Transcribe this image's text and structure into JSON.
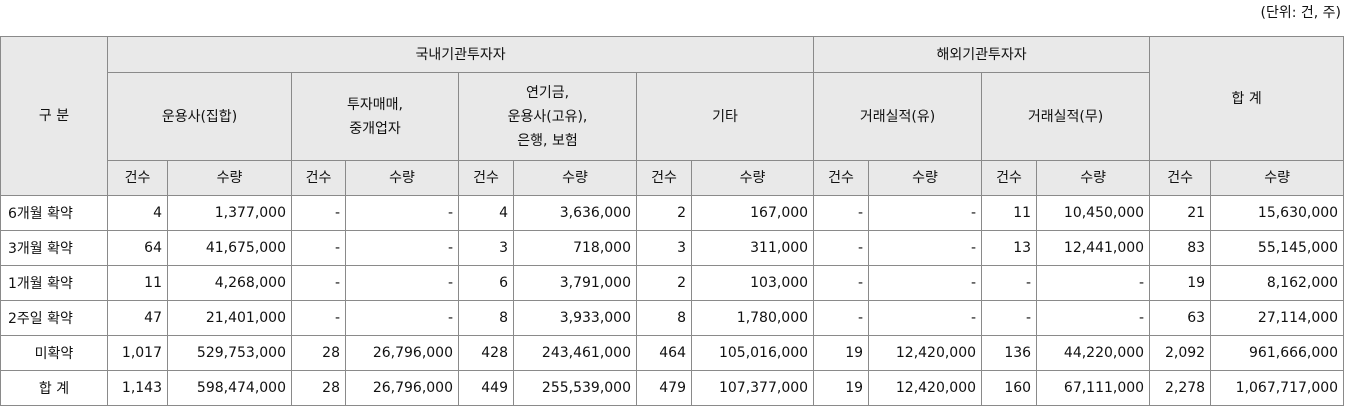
{
  "unit_label": "(단위: 건, 주)",
  "header": {
    "category": "구 분",
    "domestic": "국내기관투자자",
    "foreign": "해외기관투자자",
    "total": "합 계",
    "sub": {
      "fund": "운용사(집합)",
      "dealer": "투자매매,\n중개업자",
      "pension": "연기금,\n운용사(고유),\n은행, 보험",
      "other": "기타",
      "foreign_yes": "거래실적(유)",
      "foreign_no": "거래실적(무)"
    },
    "count_label": "건수",
    "qty_label": "수량"
  },
  "rows": [
    {
      "label": "6개월 확약",
      "fund_c": "4",
      "fund_q": "1,377,000",
      "dealer_c": "-",
      "dealer_q": "-",
      "pension_c": "4",
      "pension_q": "3,636,000",
      "other_c": "2",
      "other_q": "167,000",
      "fy_c": "-",
      "fy_q": "-",
      "fn_c": "11",
      "fn_q": "10,450,000",
      "tot_c": "21",
      "tot_q": "15,630,000"
    },
    {
      "label": "3개월 확약",
      "fund_c": "64",
      "fund_q": "41,675,000",
      "dealer_c": "-",
      "dealer_q": "-",
      "pension_c": "3",
      "pension_q": "718,000",
      "other_c": "3",
      "other_q": "311,000",
      "fy_c": "-",
      "fy_q": "-",
      "fn_c": "13",
      "fn_q": "12,441,000",
      "tot_c": "83",
      "tot_q": "55,145,000"
    },
    {
      "label": "1개월 확약",
      "fund_c": "11",
      "fund_q": "4,268,000",
      "dealer_c": "-",
      "dealer_q": "-",
      "pension_c": "6",
      "pension_q": "3,791,000",
      "other_c": "2",
      "other_q": "103,000",
      "fy_c": "-",
      "fy_q": "-",
      "fn_c": "-",
      "fn_q": "-",
      "tot_c": "19",
      "tot_q": "8,162,000"
    },
    {
      "label": "2주일 확약",
      "fund_c": "47",
      "fund_q": "21,401,000",
      "dealer_c": "-",
      "dealer_q": "-",
      "pension_c": "8",
      "pension_q": "3,933,000",
      "other_c": "8",
      "other_q": "1,780,000",
      "fy_c": "-",
      "fy_q": "-",
      "fn_c": "-",
      "fn_q": "-",
      "tot_c": "63",
      "tot_q": "27,114,000"
    },
    {
      "label": "미확약",
      "fund_c": "1,017",
      "fund_q": "529,753,000",
      "dealer_c": "28",
      "dealer_q": "26,796,000",
      "pension_c": "428",
      "pension_q": "243,461,000",
      "other_c": "464",
      "other_q": "105,016,000",
      "fy_c": "19",
      "fy_q": "12,420,000",
      "fn_c": "136",
      "fn_q": "44,220,000",
      "tot_c": "2,092",
      "tot_q": "961,666,000"
    },
    {
      "label": "합 계",
      "fund_c": "1,143",
      "fund_q": "598,474,000",
      "dealer_c": "28",
      "dealer_q": "26,796,000",
      "pension_c": "449",
      "pension_q": "255,539,000",
      "other_c": "479",
      "other_q": "107,377,000",
      "fy_c": "19",
      "fy_q": "12,420,000",
      "fn_c": "160",
      "fn_q": "67,111,000",
      "tot_c": "2,278",
      "tot_q": "1,067,717,000"
    }
  ]
}
